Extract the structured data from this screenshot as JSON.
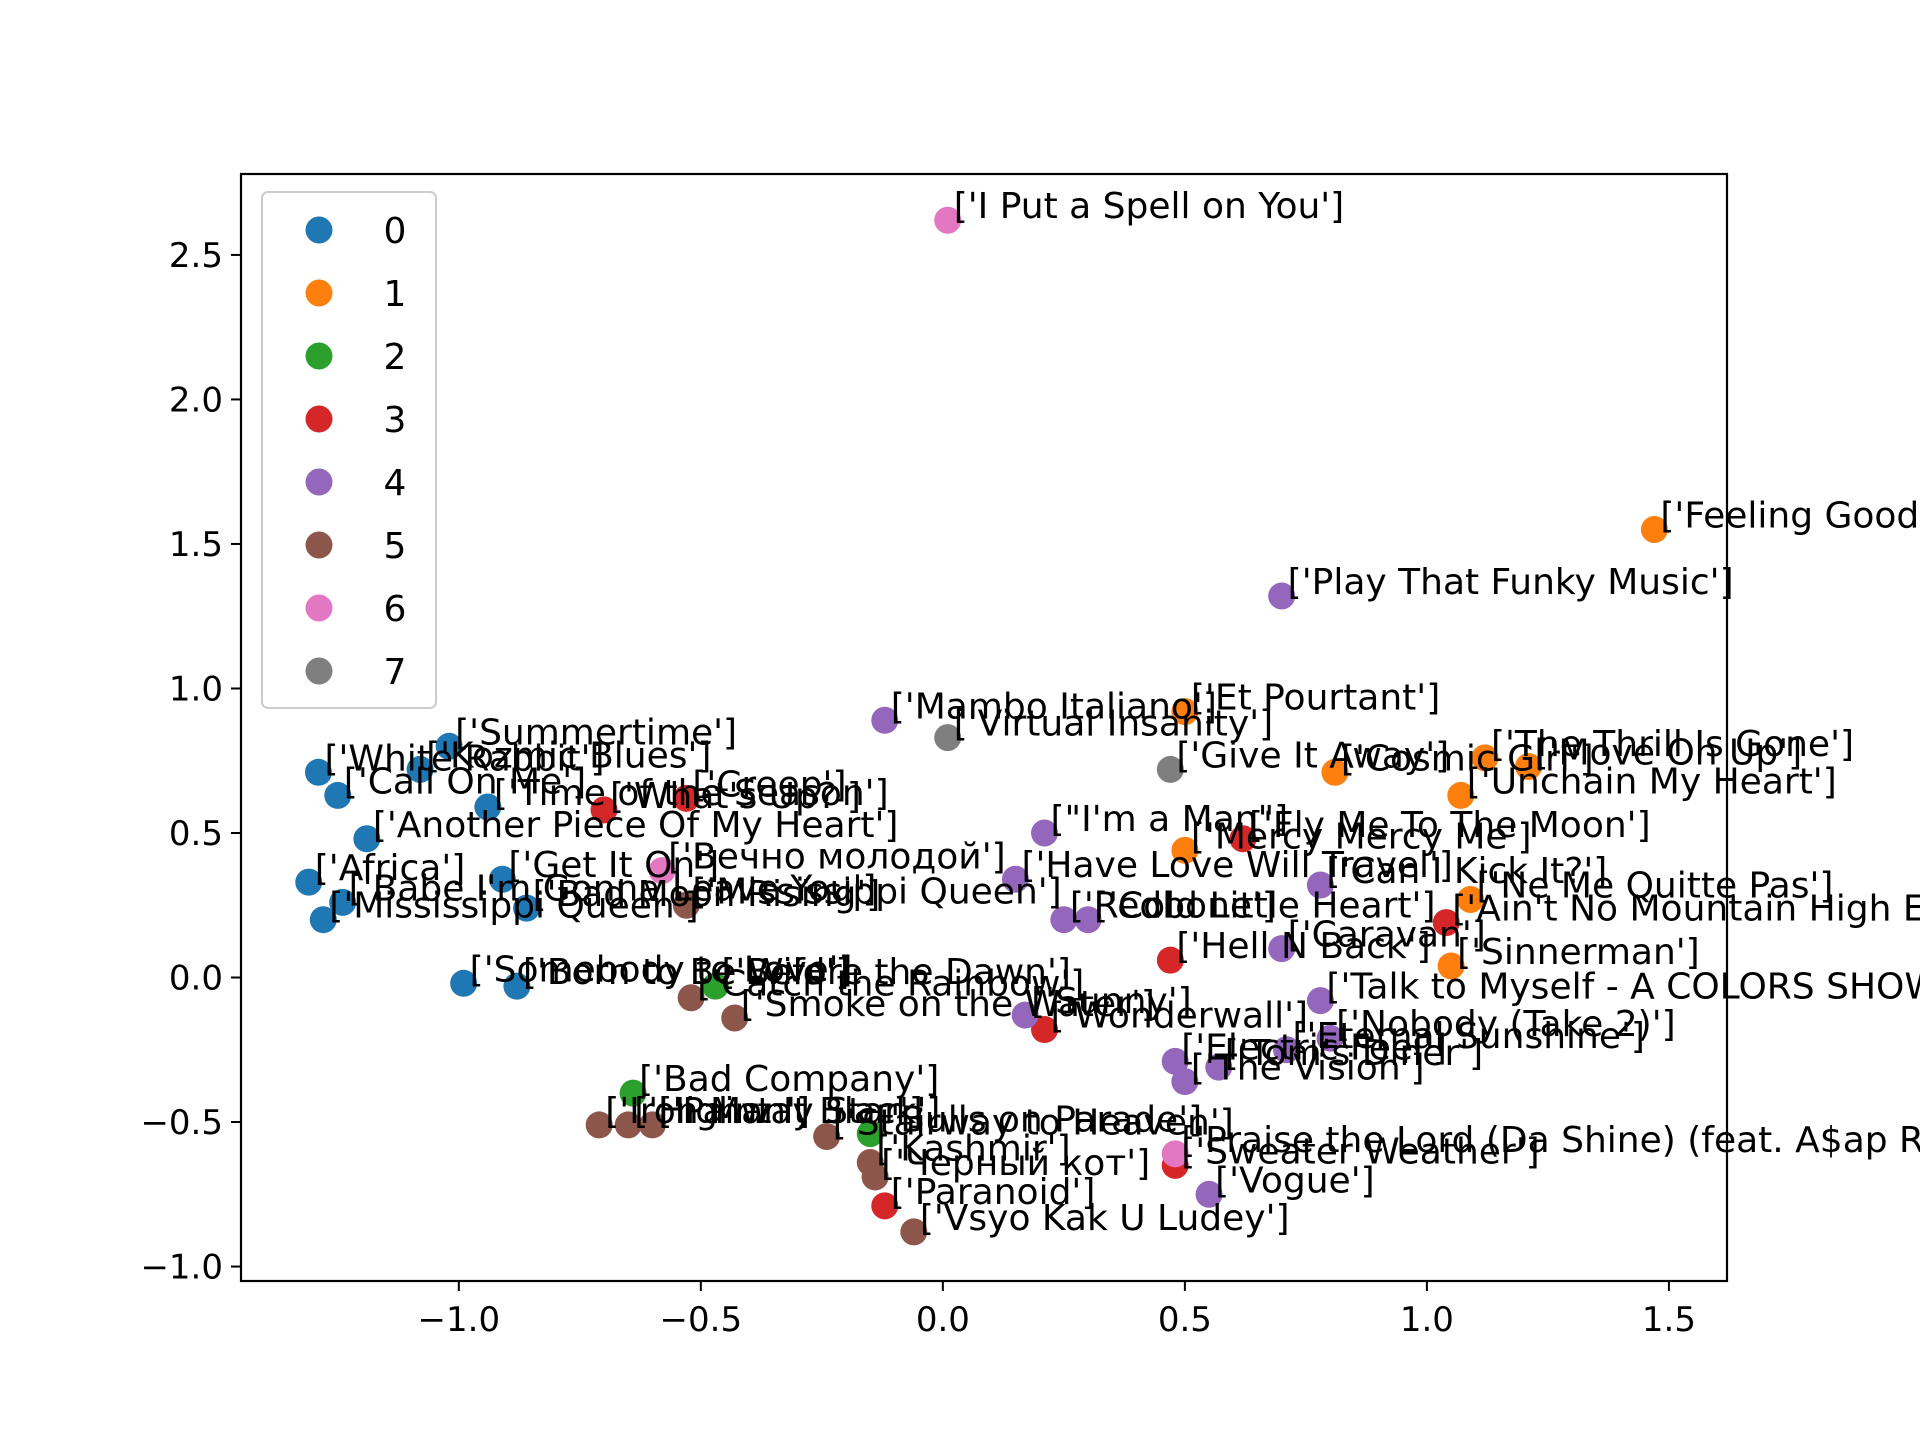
{
  "chart_data": {
    "type": "scatter",
    "title": "",
    "xlabel": "",
    "ylabel": "",
    "xlim": [
      -1.45,
      1.62
    ],
    "ylim": [
      -1.05,
      2.78
    ],
    "xticks": [
      "−1.0",
      "−0.5",
      "0.0",
      "0.5",
      "1.0",
      "1.5"
    ],
    "xtick_values": [
      -1.0,
      -0.5,
      0.0,
      0.5,
      1.0,
      1.5
    ],
    "yticks": [
      "−1.0",
      "−0.5",
      "0.0",
      "0.5",
      "1.0",
      "1.5",
      "2.0",
      "2.5"
    ],
    "ytick_values": [
      -1.0,
      -0.5,
      0.0,
      0.5,
      1.0,
      1.5,
      2.0,
      2.5
    ],
    "grid": false,
    "legend_position": "top-left",
    "series": [
      {
        "name": "0",
        "color": "#1f77b4",
        "points": [
          {
            "x": -1.02,
            "y": 0.8,
            "label": "['Summertime']"
          },
          {
            "x": -1.08,
            "y": 0.72,
            "label": "['Kozmic Blues']"
          },
          {
            "x": -1.29,
            "y": 0.71,
            "label": "['White Rabbit']"
          },
          {
            "x": -1.25,
            "y": 0.63,
            "label": "['Call On Me']"
          },
          {
            "x": -0.94,
            "y": 0.59,
            "label": "['Time of the Season']"
          },
          {
            "x": -1.19,
            "y": 0.48,
            "label": "['Another Piece Of My Heart']"
          },
          {
            "x": -1.31,
            "y": 0.33,
            "label": "['Africa']"
          },
          {
            "x": -0.91,
            "y": 0.34,
            "label": "['Get It On']"
          },
          {
            "x": -1.24,
            "y": 0.26,
            "label": "['Babe I'm Gonna Leave You']"
          },
          {
            "x": -1.28,
            "y": 0.2,
            "label": "['Mississippi Queen']"
          },
          {
            "x": -0.86,
            "y": 0.24,
            "label": "['Bad Moon Rising']"
          },
          {
            "x": -0.99,
            "y": -0.02,
            "label": "['Somebody to Love']"
          },
          {
            "x": -0.88,
            "y": -0.03,
            "label": "['Born to Be Wild']"
          }
        ]
      },
      {
        "name": "1",
        "color": "#ff7f0e",
        "points": [
          {
            "x": 1.47,
            "y": 1.55,
            "label": "['Feeling Good']"
          },
          {
            "x": 0.5,
            "y": 0.92,
            "label": "['Et Pourtant']"
          },
          {
            "x": 0.81,
            "y": 0.71,
            "label": "['Cosmic Girl']"
          },
          {
            "x": 1.12,
            "y": 0.76,
            "label": "['The Thrill Is Gone']"
          },
          {
            "x": 1.21,
            "y": 0.73,
            "label": "['Move On Up']"
          },
          {
            "x": 1.07,
            "y": 0.63,
            "label": "['Unchain My Heart']"
          },
          {
            "x": 0.5,
            "y": 0.44,
            "label": "['Mercy Mercy Me']"
          },
          {
            "x": 1.09,
            "y": 0.27,
            "label": "['Ne Me Quitte Pas']"
          },
          {
            "x": 1.05,
            "y": 0.04,
            "label": "['Sinnerman']"
          }
        ]
      },
      {
        "name": "2",
        "color": "#2ca02c",
        "points": [
          {
            "x": -0.64,
            "y": -0.4,
            "label": "['Bad Company']"
          },
          {
            "x": -0.47,
            "y": -0.03,
            "label": "['Before the Dawn']"
          },
          {
            "x": -0.15,
            "y": -0.54,
            "label": "['Bulls on Parade']"
          }
        ]
      },
      {
        "name": "3",
        "color": "#d62728",
        "points": [
          {
            "x": -0.7,
            "y": 0.58,
            "label": "['What's Up?']"
          },
          {
            "x": -0.53,
            "y": 0.62,
            "label": "['Creep']"
          },
          {
            "x": 0.62,
            "y": 0.48,
            "label": "['Fly Me To The Moon']"
          },
          {
            "x": 1.04,
            "y": 0.19,
            "label": "['Ain't No Mountain High Enough']"
          },
          {
            "x": 0.47,
            "y": 0.06,
            "label": "['Hell N Back']"
          },
          {
            "x": 0.21,
            "y": -0.18,
            "label": "['Wonderwall']"
          },
          {
            "x": 0.48,
            "y": -0.65,
            "label": "['Sweater Weather']"
          },
          {
            "x": -0.12,
            "y": -0.79,
            "label": "['Paranoid']"
          }
        ]
      },
      {
        "name": "4",
        "color": "#9467bd",
        "points": [
          {
            "x": 0.7,
            "y": 1.32,
            "label": "['Play That Funky Music']"
          },
          {
            "x": -0.12,
            "y": 0.89,
            "label": "['Mambo Italiano']"
          },
          {
            "x": 0.21,
            "y": 0.5,
            "label": "[\"I'm a Man\"]"
          },
          {
            "x": 0.15,
            "y": 0.34,
            "label": "['Have Love Will Travel']"
          },
          {
            "x": 0.25,
            "y": 0.2,
            "label": "['Redbone']"
          },
          {
            "x": 0.3,
            "y": 0.2,
            "label": "['Cold Little Heart']"
          },
          {
            "x": 0.78,
            "y": 0.32,
            "label": "['Can I Kick It?']"
          },
          {
            "x": 0.7,
            "y": 0.1,
            "label": "['Caravan']"
          },
          {
            "x": 0.17,
            "y": -0.13,
            "label": "['Sunny']"
          },
          {
            "x": 0.78,
            "y": -0.08,
            "label": "['Talk to Myself - A COLORS SHOW']"
          },
          {
            "x": 0.8,
            "y": -0.21,
            "label": "['Nobody (Take 2)']"
          },
          {
            "x": 0.71,
            "y": -0.25,
            "label": "['Eternal Sunshine']"
          },
          {
            "x": 0.48,
            "y": -0.29,
            "label": "['Electric Feel']"
          },
          {
            "x": 0.57,
            "y": -0.31,
            "label": "['Tom's Diner']"
          },
          {
            "x": 0.5,
            "y": -0.36,
            "label": "['The Vision']"
          },
          {
            "x": 0.55,
            "y": -0.75,
            "label": "['Vogue']"
          }
        ]
      },
      {
        "name": "5",
        "color": "#8c564b",
        "points": [
          {
            "x": -0.53,
            "y": 0.25,
            "label": "['Mississippi Queen']"
          },
          {
            "x": -0.52,
            "y": -0.07,
            "label": "['Catch the Rainbow']"
          },
          {
            "x": -0.43,
            "y": -0.14,
            "label": "['Smoke on the Water']"
          },
          {
            "x": -0.71,
            "y": -0.51,
            "label": "['Iron Man']"
          },
          {
            "x": -0.65,
            "y": -0.51,
            "label": "['Highway Star']"
          },
          {
            "x": -0.6,
            "y": -0.51,
            "label": "['Paint It Black']"
          },
          {
            "x": -0.24,
            "y": -0.55,
            "label": "['Stairway to Heaven']"
          },
          {
            "x": -0.15,
            "y": -0.64,
            "label": "['Kashmir']"
          },
          {
            "x": -0.14,
            "y": -0.69,
            "label": "['Черный кот']"
          },
          {
            "x": -0.06,
            "y": -0.88,
            "label": "['Vsyo Kak U Ludey']"
          }
        ]
      },
      {
        "name": "6",
        "color": "#e377c2",
        "points": [
          {
            "x": 0.01,
            "y": 2.62,
            "label": "['I Put a Spell on You']"
          },
          {
            "x": -0.58,
            "y": 0.37,
            "label": "['Вечно молодой']"
          },
          {
            "x": 0.48,
            "y": -0.61,
            "label": "['Praise the Lord (Da Shine) (feat. A$ap Rocky)']"
          }
        ]
      },
      {
        "name": "7",
        "color": "#7f7f7f",
        "points": [
          {
            "x": 0.01,
            "y": 0.83,
            "label": "['Virtual Insanity']"
          },
          {
            "x": 0.47,
            "y": 0.72,
            "label": "['Give It Away']"
          }
        ]
      }
    ]
  }
}
